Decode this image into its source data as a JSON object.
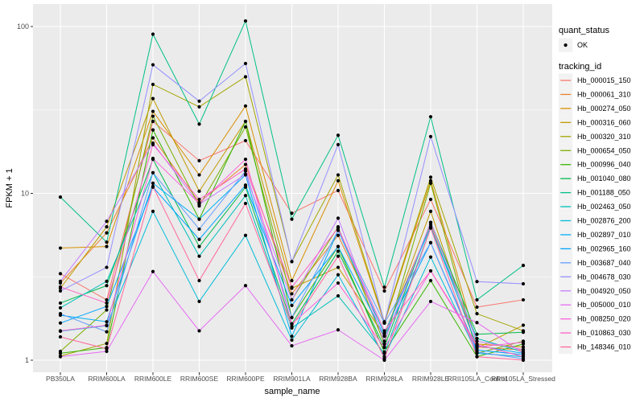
{
  "figure": {
    "background": "#FFFFFF",
    "panel_background": "#EBEBEB",
    "grid_color": "#FFFFFF",
    "axis_text_color": "#4D4D4D",
    "tick_color": "#333333",
    "point_color": "#000000",
    "legend_key_background": "#F2F2F2"
  },
  "legend": {
    "quant_status_title": "quant_status",
    "ok_label": "OK",
    "tracking_id_title": "tracking_id"
  },
  "chart_data": {
    "type": "line",
    "title": "",
    "xlabel": "sample_name",
    "ylabel": "FPKM + 1",
    "yscale": "log10",
    "ylim": [
      0.85,
      135
    ],
    "y_major_ticks": [
      1,
      10,
      100
    ],
    "y_minor_ticks": [
      3.1623,
      31.623
    ],
    "grid": true,
    "legend_position": "right",
    "quant_status": "OK",
    "categories": [
      "PB350LA",
      "RRIM600LA",
      "RRIM600LE",
      "RRIM600SE",
      "RRIM600PE",
      "RRIM901LA",
      "RRIM928BA",
      "RRIM928LA",
      "RRIM928LE",
      "RRII105LA_Control",
      "RRII105LA_Stressed"
    ],
    "series": [
      {
        "name": "Hb_000015_150",
        "color": "#F8766D",
        "values": [
          3.3,
          2.3,
          27,
          15.7,
          20.7,
          7.6,
          10.4,
          2.6,
          9.2,
          2.08,
          2.3
        ]
      },
      {
        "name": "Hb_000061_310",
        "color": "#EA8331",
        "values": [
          2.9,
          5.8,
          21.5,
          8.8,
          14.9,
          2.5,
          5.6,
          1.45,
          6.5,
          1.2,
          1.15
        ]
      },
      {
        "name": "Hb_000274_050",
        "color": "#D89000",
        "values": [
          4.7,
          4.8,
          31,
          12.9,
          33.4,
          3.0,
          11.9,
          1.67,
          11.9,
          1.25,
          1.2
        ]
      },
      {
        "name": "Hb_000316_060",
        "color": "#C09B00",
        "values": [
          2.7,
          6.3,
          37,
          10.3,
          27,
          2.7,
          3.6,
          1.4,
          7.8,
          1.18,
          1.62
        ]
      },
      {
        "name": "Hb_000320_310",
        "color": "#A3A500",
        "values": [
          1.06,
          1.26,
          45,
          33,
          50,
          3.9,
          12.9,
          1.7,
          12.5,
          1.9,
          1.5
        ]
      },
      {
        "name": "Hb_000654_050",
        "color": "#7CAE00",
        "values": [
          1.13,
          2.0,
          29,
          8.4,
          25,
          2.3,
          6.3,
          1.25,
          11.5,
          1.1,
          1.3
        ]
      },
      {
        "name": "Hb_000996_040",
        "color": "#39B600",
        "values": [
          1.1,
          1.19,
          24,
          7.0,
          27,
          1.8,
          4.8,
          1.12,
          3.0,
          1.05,
          1.25
        ]
      },
      {
        "name": "Hb_001040_080",
        "color": "#00BB4E",
        "values": [
          2.2,
          2.8,
          16,
          4.8,
          10.9,
          1.65,
          4.5,
          1.2,
          6.7,
          1.43,
          1.47
        ]
      },
      {
        "name": "Hb_001188_050",
        "color": "#00C087",
        "values": [
          9.5,
          5.1,
          90,
          26,
          108,
          7.0,
          22.3,
          2.74,
          28.8,
          2.3,
          3.7
        ]
      },
      {
        "name": "Hb_002463_050",
        "color": "#00C0B8",
        "values": [
          2.06,
          2.97,
          13.3,
          4.2,
          9.7,
          1.56,
          2.43,
          1.1,
          6.2,
          1.35,
          1.12
        ]
      },
      {
        "name": "Hb_002876_200",
        "color": "#00BCD8",
        "values": [
          1.49,
          1.61,
          7.8,
          2.25,
          5.6,
          1.32,
          3.25,
          1.05,
          4.15,
          1.1,
          1.05
        ]
      },
      {
        "name": "Hb_002897_010",
        "color": "#00B0F6",
        "values": [
          1.86,
          1.7,
          11.5,
          7.0,
          12.9,
          1.39,
          6.0,
          1.44,
          6.3,
          1.22,
          1.1
        ]
      },
      {
        "name": "Hb_002965_160",
        "color": "#00A5FF",
        "values": [
          1.67,
          2.1,
          10.9,
          5.3,
          11.2,
          2.13,
          4.8,
          1.39,
          5.06,
          1.15,
          1.08
        ]
      },
      {
        "name": "Hb_003687_040",
        "color": "#619CFF",
        "values": [
          1.9,
          1.48,
          13.3,
          6.1,
          13.6,
          1.8,
          6.0,
          1.67,
          5.06,
          1.12,
          1.02
        ]
      },
      {
        "name": "Hb_004678_030",
        "color": "#9590FF",
        "values": [
          2.6,
          3.6,
          59,
          35.7,
          60,
          3.9,
          19.6,
          1.67,
          21.9,
          2.96,
          2.87
        ]
      },
      {
        "name": "Hb_004920_050",
        "color": "#C77CFF",
        "values": [
          2.97,
          6.8,
          20,
          8.6,
          13,
          2.3,
          7.1,
          1.3,
          6.7,
          1.3,
          1.16
        ]
      },
      {
        "name": "Hb_005000_010",
        "color": "#E76BF3",
        "values": [
          1.05,
          1.13,
          3.4,
          1.5,
          2.8,
          1.22,
          1.52,
          1.0,
          2.25,
          1.68,
          1.1
        ]
      },
      {
        "name": "Hb_008250_020",
        "color": "#FA62DB",
        "values": [
          1.5,
          1.62,
          16.2,
          8.7,
          16,
          1.65,
          2.9,
          1.19,
          3.43,
          1.2,
          1.28
        ]
      },
      {
        "name": "Hb_010863_030",
        "color": "#FF61C7",
        "values": [
          2.75,
          2.2,
          19.6,
          9.2,
          14,
          2.74,
          6.2,
          1.5,
          3.43,
          1.24,
          1.05
        ]
      },
      {
        "name": "Hb_148346_010",
        "color": "#FF689E",
        "values": [
          1.38,
          1.17,
          11,
          3.0,
          8.7,
          1.6,
          4.2,
          1.02,
          6.2,
          1.05,
          1.0
        ]
      }
    ]
  }
}
